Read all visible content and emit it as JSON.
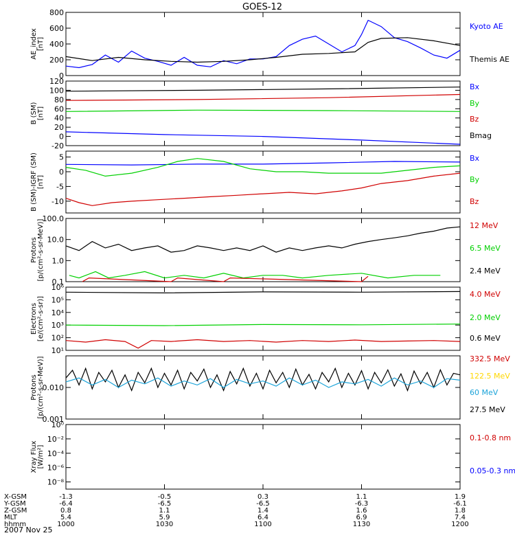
{
  "title": "GOES-12",
  "date_label": "2007 Nov 25",
  "colors": {
    "black": "#000000",
    "blue": "#0000ff",
    "green": "#00d000",
    "red": "#d00000",
    "yellow": "#ffd700",
    "cyan": "#1aa3d9"
  },
  "x_axis": {
    "rows": [
      {
        "label": "X-GSM",
        "values": [
          "-1.3",
          "-0.5",
          "0.3",
          "1.1",
          "1.9"
        ]
      },
      {
        "label": "Y-GSM",
        "values": [
          "-6.4",
          "-6.5",
          "-6.5",
          "-6.3",
          "-6.1"
        ]
      },
      {
        "label": "Z-GSM",
        "values": [
          "0.8",
          "1.1",
          "1.4",
          "1.6",
          "1.8"
        ]
      },
      {
        "label": "MLT",
        "values": [
          "5.4",
          "5.9",
          "6.4",
          "6.9",
          "7.4"
        ]
      },
      {
        "label": "hhmm",
        "values": [
          "1000",
          "1030",
          "1100",
          "1130",
          "1200"
        ]
      }
    ],
    "minutes": [
      600,
      630,
      660,
      690,
      720
    ]
  },
  "chart_data": [
    {
      "type": "line",
      "ylabel": "AE_index\n[nT]",
      "ylim": [
        0,
        800
      ],
      "ticks": [
        "0",
        "200",
        "400",
        "600",
        "800"
      ],
      "tick_values": [
        0,
        200,
        400,
        600,
        800
      ],
      "x_range": [
        600,
        720
      ],
      "legend": [
        {
          "name": "Kyoto AE",
          "color": "#0000ff"
        },
        {
          "name": "Themis AE",
          "color": "#000000"
        }
      ],
      "series": [
        {
          "name": "Kyoto AE",
          "color": "#0000ff",
          "x": [
            600,
            604,
            608,
            612,
            616,
            620,
            624,
            628,
            632,
            636,
            640,
            644,
            648,
            652,
            656,
            660,
            664,
            668,
            672,
            676,
            680,
            684,
            688,
            690,
            692,
            696,
            700,
            704,
            708,
            712,
            716,
            720
          ],
          "y": [
            120,
            100,
            140,
            260,
            170,
            310,
            220,
            180,
            130,
            230,
            130,
            110,
            190,
            150,
            210,
            210,
            240,
            380,
            460,
            500,
            400,
            300,
            380,
            520,
            700,
            620,
            480,
            430,
            350,
            260,
            220,
            320
          ]
        },
        {
          "name": "Themis AE",
          "color": "#000000",
          "x": [
            600,
            608,
            616,
            624,
            632,
            640,
            648,
            656,
            664,
            672,
            680,
            688,
            692,
            696,
            704,
            712,
            720
          ],
          "y": [
            240,
            190,
            230,
            200,
            180,
            170,
            180,
            200,
            230,
            270,
            280,
            300,
            420,
            470,
            480,
            440,
            380
          ]
        }
      ]
    },
    {
      "type": "line",
      "ylabel": "B (SM)\n[nT]",
      "ylim": [
        -20,
        120
      ],
      "ticks": [
        "-20",
        "0",
        "20",
        "40",
        "60",
        "80",
        "100",
        "120"
      ],
      "tick_values": [
        -20,
        0,
        20,
        40,
        60,
        80,
        100,
        120
      ],
      "x_range": [
        600,
        720
      ],
      "legend": [
        {
          "name": "Bx",
          "color": "#0000ff"
        },
        {
          "name": "By",
          "color": "#00d000"
        },
        {
          "name": "Bz",
          "color": "#d00000"
        },
        {
          "name": "Bmag",
          "color": "#000000"
        }
      ],
      "series": [
        {
          "name": "Bmag",
          "color": "#000000",
          "x": [
            600,
            640,
            680,
            720
          ],
          "y": [
            98,
            100,
            103,
            107
          ]
        },
        {
          "name": "Bz",
          "color": "#d00000",
          "x": [
            600,
            640,
            680,
            720
          ],
          "y": [
            78,
            80,
            84,
            91
          ]
        },
        {
          "name": "By",
          "color": "#00d000",
          "x": [
            600,
            640,
            680,
            720
          ],
          "y": [
            54,
            57,
            56,
            54
          ]
        },
        {
          "name": "Bx",
          "color": "#0000ff",
          "x": [
            600,
            630,
            660,
            690,
            720
          ],
          "y": [
            10,
            4,
            0,
            -8,
            -17
          ]
        }
      ]
    },
    {
      "type": "line",
      "ylabel": "B (SM)-IGRF (SM)\n[nT]",
      "ylim": [
        -14,
        7
      ],
      "ticks": [
        "-10",
        "-5",
        "0",
        "5"
      ],
      "tick_values": [
        -10,
        -5,
        0,
        5
      ],
      "x_range": [
        600,
        720
      ],
      "legend": [
        {
          "name": "Bx",
          "color": "#0000ff"
        },
        {
          "name": "By",
          "color": "#00d000"
        },
        {
          "name": "Bz",
          "color": "#d00000"
        }
      ],
      "series": [
        {
          "name": "Bx",
          "color": "#0000ff",
          "x": [
            600,
            620,
            640,
            660,
            680,
            700,
            720
          ],
          "y": [
            2.5,
            2.3,
            2.6,
            2.6,
            3.0,
            3.5,
            3.3
          ]
        },
        {
          "name": "By",
          "color": "#00d000",
          "x": [
            600,
            606,
            612,
            620,
            628,
            634,
            640,
            648,
            656,
            664,
            672,
            680,
            688,
            696,
            704,
            712,
            720
          ],
          "y": [
            1.5,
            0.5,
            -1.5,
            -0.5,
            1.5,
            3.5,
            4.5,
            3.5,
            1.0,
            0.0,
            0.0,
            -0.5,
            -0.5,
            -0.5,
            0.5,
            1.5,
            2.0
          ]
        },
        {
          "name": "Bz",
          "color": "#d00000",
          "x": [
            600,
            604,
            608,
            614,
            620,
            628,
            636,
            644,
            652,
            660,
            668,
            676,
            684,
            690,
            696,
            704,
            712,
            720
          ],
          "y": [
            -9.0,
            -10.5,
            -11.5,
            -10.5,
            -10.0,
            -9.5,
            -9.0,
            -8.5,
            -8.0,
            -7.5,
            -7.0,
            -7.5,
            -6.5,
            -5.5,
            -4.0,
            -3.0,
            -1.5,
            -0.5
          ]
        }
      ]
    },
    {
      "type": "line",
      "ylabel": "Protons\n[p/(cm²-s-sr-MeV)]",
      "yscale": "log",
      "ylim": [
        0.1,
        100
      ],
      "ticks": [
        "0.1",
        "1.0",
        "10.0",
        "100.0"
      ],
      "tick_values": [
        0.1,
        1,
        10,
        100
      ],
      "x_range": [
        600,
        720
      ],
      "legend": [
        {
          "name": "12 MeV",
          "color": "#d00000"
        },
        {
          "name": "6.5 MeV",
          "color": "#00d000"
        },
        {
          "name": "2.4 MeV",
          "color": "#000000"
        }
      ],
      "series": [
        {
          "name": "2.4 MeV",
          "color": "#000000",
          "x": [
            600,
            604,
            608,
            612,
            616,
            620,
            624,
            628,
            632,
            636,
            640,
            644,
            648,
            652,
            656,
            660,
            664,
            668,
            672,
            676,
            680,
            684,
            688,
            692,
            696,
            700,
            704,
            708,
            712,
            716,
            720
          ],
          "y": [
            5,
            3,
            8,
            4,
            6,
            3,
            4,
            5,
            2.5,
            3,
            5,
            4,
            3,
            4,
            3,
            5,
            2.5,
            4,
            3,
            4,
            5,
            4,
            6,
            8,
            10,
            12,
            15,
            20,
            25,
            35,
            40
          ]
        },
        {
          "name": "6.5 MeV",
          "color": "#00d000",
          "x": [
            601,
            604,
            609,
            613,
            618,
            624,
            630,
            636,
            642,
            648,
            654,
            660,
            666,
            672,
            680,
            690,
            698,
            706,
            714
          ],
          "y": [
            0.2,
            0.15,
            0.3,
            0.15,
            0.2,
            0.3,
            0.15,
            0.2,
            0.15,
            0.25,
            0.15,
            0.2,
            0.2,
            0.15,
            0.2,
            0.25,
            0.15,
            0.2,
            0.2
          ]
        },
        {
          "name": "12 MeV",
          "color": "#d00000",
          "x": [
            605,
            607,
            632,
            634,
            648,
            650,
            690,
            692
          ],
          "y": [
            0.1,
            0.15,
            0.1,
            0.15,
            0.1,
            0.15,
            0.1,
            0.18
          ]
        }
      ]
    },
    {
      "type": "line",
      "ylabel": "Electrons\n[e/(cm²-s-sr)]",
      "yscale": "log",
      "ylim": [
        10,
        1000000
      ],
      "ticks": [
        "10¹",
        "10²",
        "10³",
        "10⁴",
        "10⁵",
        "10⁶"
      ],
      "tick_values": [
        10,
        100,
        1000,
        10000,
        100000,
        1000000
      ],
      "x_range": [
        600,
        720
      ],
      "legend": [
        {
          "name": "4.0 MeV",
          "color": "#d00000"
        },
        {
          "name": "2.0 MeV",
          "color": "#00d000"
        },
        {
          "name": "0.6 MeV",
          "color": "#000000"
        }
      ],
      "series": [
        {
          "name": "0.6 MeV",
          "color": "#000000",
          "x": [
            600,
            630,
            660,
            690,
            720
          ],
          "y": [
            400000,
            350000,
            420000,
            400000,
            450000
          ]
        },
        {
          "name": "2.0 MeV",
          "color": "#00d000",
          "x": [
            600,
            630,
            660,
            690,
            720
          ],
          "y": [
            1000,
            900,
            1100,
            1050,
            1200
          ]
        },
        {
          "name": "4.0 MeV",
          "color": "#d00000",
          "x": [
            600,
            606,
            612,
            618,
            622,
            626,
            632,
            640,
            648,
            656,
            664,
            672,
            680,
            688,
            696,
            704,
            712,
            720
          ],
          "y": [
            60,
            45,
            70,
            50,
            15,
            60,
            50,
            70,
            50,
            60,
            45,
            60,
            50,
            65,
            50,
            55,
            60,
            50
          ]
        }
      ]
    },
    {
      "type": "line",
      "ylabel": "Protons\n[p/(cm²-s-sr-MeV)]",
      "yscale": "log",
      "ylim": [
        0.001,
        0.1
      ],
      "ticks": [
        "0.001",
        "0.010"
      ],
      "tick_values": [
        0.001,
        0.01
      ],
      "x_range": [
        600,
        720
      ],
      "legend": [
        {
          "name": "332.5 MeV",
          "color": "#d00000"
        },
        {
          "name": "122.5 MeV",
          "color": "#ffd700"
        },
        {
          "name": "60 MeV",
          "color": "#1aa3d9"
        },
        {
          "name": "27.5 MeV",
          "color": "#000000"
        }
      ],
      "series": [
        {
          "name": "27.5 MeV",
          "color": "#000000",
          "x": [
            600,
            602,
            604,
            606,
            608,
            610,
            612,
            614,
            616,
            618,
            620,
            622,
            624,
            626,
            628,
            630,
            632,
            634,
            636,
            638,
            640,
            642,
            644,
            646,
            648,
            650,
            652,
            654,
            656,
            658,
            660,
            662,
            664,
            666,
            668,
            670,
            672,
            674,
            676,
            678,
            680,
            682,
            684,
            686,
            688,
            690,
            692,
            694,
            696,
            698,
            700,
            702,
            704,
            706,
            708,
            710,
            712,
            714,
            716,
            718,
            720
          ],
          "y": [
            0.02,
            0.035,
            0.012,
            0.04,
            0.009,
            0.03,
            0.015,
            0.035,
            0.01,
            0.025,
            0.008,
            0.03,
            0.014,
            0.04,
            0.01,
            0.028,
            0.012,
            0.035,
            0.009,
            0.03,
            0.016,
            0.038,
            0.01,
            0.025,
            0.008,
            0.032,
            0.013,
            0.04,
            0.011,
            0.028,
            0.009,
            0.035,
            0.014,
            0.03,
            0.01,
            0.038,
            0.012,
            0.026,
            0.009,
            0.03,
            0.015,
            0.04,
            0.01,
            0.028,
            0.012,
            0.034,
            0.009,
            0.03,
            0.014,
            0.036,
            0.011,
            0.027,
            0.008,
            0.033,
            0.013,
            0.03,
            0.01,
            0.036,
            0.012,
            0.028,
            0.025
          ]
        },
        {
          "name": "60 MeV",
          "color": "#1aa3d9",
          "x": [
            600,
            604,
            608,
            612,
            616,
            620,
            624,
            628,
            632,
            636,
            640,
            644,
            648,
            652,
            656,
            660,
            664,
            668,
            672,
            676,
            680,
            684,
            688,
            692,
            696,
            700,
            704,
            708,
            712,
            716,
            720
          ],
          "y": [
            0.015,
            0.02,
            0.012,
            0.018,
            0.01,
            0.017,
            0.013,
            0.02,
            0.011,
            0.016,
            0.012,
            0.019,
            0.01,
            0.018,
            0.013,
            0.016,
            0.011,
            0.02,
            0.012,
            0.017,
            0.01,
            0.015,
            0.013,
            0.018,
            0.011,
            0.02,
            0.012,
            0.016,
            0.01,
            0.019,
            0.017
          ]
        }
      ]
    },
    {
      "type": "line",
      "ylabel": "Xray Flux\n[W/m²]",
      "yscale": "log",
      "ylim": [
        1e-09,
        1
      ],
      "ticks": [
        "10⁻⁸",
        "10⁻⁶",
        "10⁻⁴",
        "10⁻²",
        "10⁰"
      ],
      "tick_values": [
        1e-08,
        1e-06,
        0.0001,
        0.01,
        1
      ],
      "x_range": [
        600,
        720
      ],
      "legend": [
        {
          "name": "0.1-0.8 nm",
          "color": "#d00000"
        },
        {
          "name": "0.05-0.3 nm",
          "color": "#0000ff"
        }
      ],
      "series": []
    }
  ]
}
